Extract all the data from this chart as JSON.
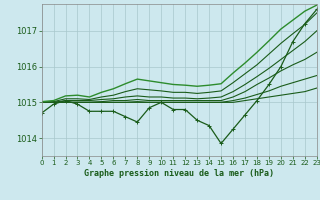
{
  "title": "Graphe pression niveau de la mer (hPa)",
  "background_color": "#cde8ee",
  "grid_color": "#a8c8cc",
  "xlim": [
    0,
    23
  ],
  "ylim": [
    1013.5,
    1017.75
  ],
  "yticks": [
    1014,
    1015,
    1016,
    1017
  ],
  "xticks": [
    0,
    1,
    2,
    3,
    4,
    5,
    6,
    7,
    8,
    9,
    10,
    11,
    12,
    13,
    14,
    15,
    16,
    17,
    18,
    19,
    20,
    21,
    22,
    23
  ],
  "series": [
    {
      "x": [
        0,
        1,
        2,
        3,
        4,
        5,
        6,
        7,
        8,
        9,
        10,
        11,
        12,
        13,
        14,
        15,
        16,
        17,
        18,
        19,
        20,
        21,
        22,
        23
      ],
      "y": [
        1014.7,
        1014.95,
        1015.05,
        1014.95,
        1014.75,
        1014.75,
        1014.75,
        1014.6,
        1014.45,
        1014.85,
        1015.0,
        1014.8,
        1014.8,
        1014.5,
        1014.35,
        1013.85,
        1014.25,
        1014.65,
        1015.05,
        1015.5,
        1016.0,
        1016.7,
        1017.2,
        1017.6
      ],
      "color": "#1a5c1a",
      "linewidth": 0.9,
      "marker": "+",
      "markersize": 3
    },
    {
      "x": [
        0,
        1,
        2,
        3,
        4,
        5,
        6,
        7,
        8,
        9,
        10,
        11,
        12,
        13,
        14,
        15,
        16,
        17,
        18,
        19,
        20,
        21,
        22,
        23
      ],
      "y": [
        1015.0,
        1015.0,
        1015.0,
        1015.0,
        1015.0,
        1015.0,
        1015.0,
        1015.0,
        1015.0,
        1015.0,
        1015.0,
        1015.0,
        1015.0,
        1015.0,
        1015.0,
        1015.0,
        1015.0,
        1015.05,
        1015.1,
        1015.15,
        1015.2,
        1015.25,
        1015.3,
        1015.4
      ],
      "color": "#1a5c1a",
      "linewidth": 0.8,
      "marker": null,
      "markersize": 0
    },
    {
      "x": [
        0,
        1,
        2,
        3,
        4,
        5,
        6,
        7,
        8,
        9,
        10,
        11,
        12,
        13,
        14,
        15,
        16,
        17,
        18,
        19,
        20,
        21,
        22,
        23
      ],
      "y": [
        1015.0,
        1015.0,
        1015.0,
        1015.0,
        1015.0,
        1015.0,
        1015.0,
        1015.0,
        1015.02,
        1015.0,
        1015.0,
        1015.0,
        1015.0,
        1015.0,
        1015.0,
        1015.0,
        1015.05,
        1015.12,
        1015.22,
        1015.32,
        1015.45,
        1015.55,
        1015.65,
        1015.75
      ],
      "color": "#1a5c1a",
      "linewidth": 0.8,
      "marker": null,
      "markersize": 0
    },
    {
      "x": [
        0,
        1,
        2,
        3,
        4,
        5,
        6,
        7,
        8,
        9,
        10,
        11,
        12,
        13,
        14,
        15,
        16,
        17,
        18,
        19,
        20,
        21,
        22,
        23
      ],
      "y": [
        1015.0,
        1015.0,
        1015.0,
        1015.0,
        1015.0,
        1015.02,
        1015.05,
        1015.05,
        1015.08,
        1015.05,
        1015.05,
        1015.05,
        1015.05,
        1015.05,
        1015.05,
        1015.05,
        1015.15,
        1015.3,
        1015.5,
        1015.68,
        1015.88,
        1016.05,
        1016.2,
        1016.4
      ],
      "color": "#1a5c1a",
      "linewidth": 0.8,
      "marker": null,
      "markersize": 0
    },
    {
      "x": [
        0,
        1,
        2,
        3,
        4,
        5,
        6,
        7,
        8,
        9,
        10,
        11,
        12,
        13,
        14,
        15,
        16,
        17,
        18,
        19,
        20,
        21,
        22,
        23
      ],
      "y": [
        1015.0,
        1015.0,
        1015.05,
        1015.05,
        1015.05,
        1015.08,
        1015.1,
        1015.15,
        1015.18,
        1015.15,
        1015.15,
        1015.12,
        1015.12,
        1015.1,
        1015.12,
        1015.15,
        1015.3,
        1015.5,
        1015.72,
        1015.95,
        1016.2,
        1016.45,
        1016.7,
        1017.0
      ],
      "color": "#1a5c1a",
      "linewidth": 0.8,
      "marker": null,
      "markersize": 0
    },
    {
      "x": [
        0,
        1,
        2,
        3,
        4,
        5,
        6,
        7,
        8,
        9,
        10,
        11,
        12,
        13,
        14,
        15,
        16,
        17,
        18,
        19,
        20,
        21,
        22,
        23
      ],
      "y": [
        1015.0,
        1015.02,
        1015.1,
        1015.1,
        1015.08,
        1015.15,
        1015.2,
        1015.3,
        1015.38,
        1015.35,
        1015.32,
        1015.28,
        1015.28,
        1015.25,
        1015.28,
        1015.32,
        1015.55,
        1015.8,
        1016.05,
        1016.35,
        1016.65,
        1016.92,
        1017.18,
        1017.5
      ],
      "color": "#1a5c1a",
      "linewidth": 0.8,
      "marker": null,
      "markersize": 0
    },
    {
      "x": [
        0,
        1,
        2,
        3,
        4,
        5,
        6,
        7,
        8,
        9,
        10,
        11,
        12,
        13,
        14,
        15,
        16,
        17,
        18,
        19,
        20,
        21,
        22,
        23
      ],
      "y": [
        1015.02,
        1015.05,
        1015.18,
        1015.2,
        1015.15,
        1015.28,
        1015.38,
        1015.52,
        1015.65,
        1015.6,
        1015.55,
        1015.5,
        1015.48,
        1015.45,
        1015.48,
        1015.52,
        1015.82,
        1016.1,
        1016.4,
        1016.72,
        1017.05,
        1017.3,
        1017.55,
        1017.72
      ],
      "color": "#2d8c2d",
      "linewidth": 1.0,
      "marker": null,
      "markersize": 0
    }
  ]
}
